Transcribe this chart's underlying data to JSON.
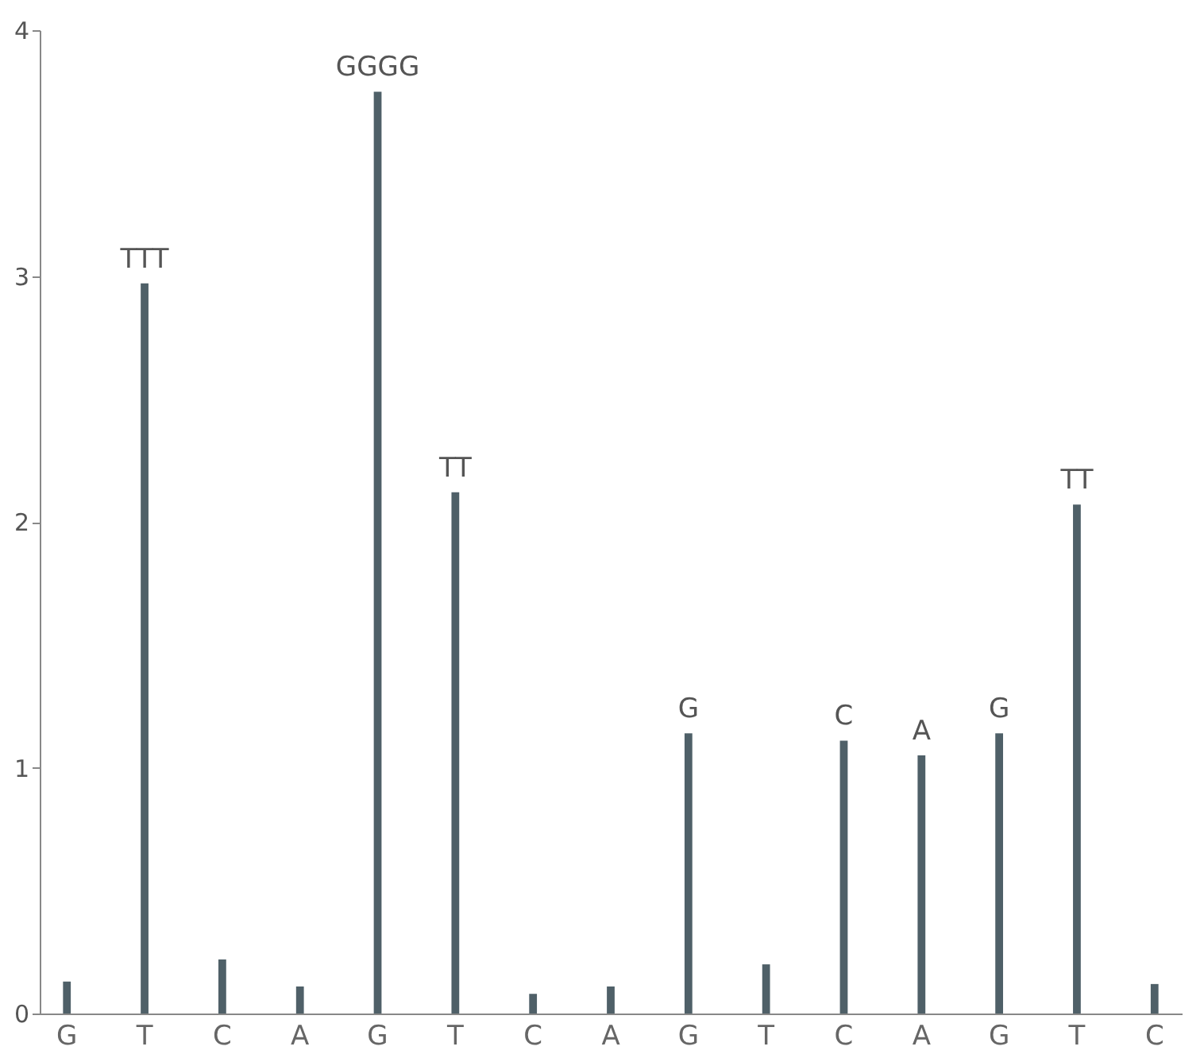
{
  "chart_data": {
    "type": "bar",
    "categories": [
      "G",
      "T",
      "C",
      "A",
      "G",
      "T",
      "C",
      "A",
      "G",
      "T",
      "C",
      "A",
      "G",
      "T",
      "C"
    ],
    "series": [
      {
        "color": "#4f6068",
        "values": [
          0.13,
          2.97,
          0.22,
          0.11,
          3.75,
          2.12,
          0.08,
          0.11,
          1.14,
          0.2,
          1.11,
          1.05,
          1.14,
          2.07,
          0.12
        ],
        "value_labels": [
          null,
          "TTT",
          null,
          null,
          "GGGG",
          "TT",
          null,
          null,
          "G",
          null,
          "C",
          "A",
          "G",
          "TT",
          null
        ]
      }
    ],
    "ylim": [
      0,
      4
    ],
    "yticks": [
      0,
      1,
      2,
      3,
      4
    ],
    "grid": false
  }
}
